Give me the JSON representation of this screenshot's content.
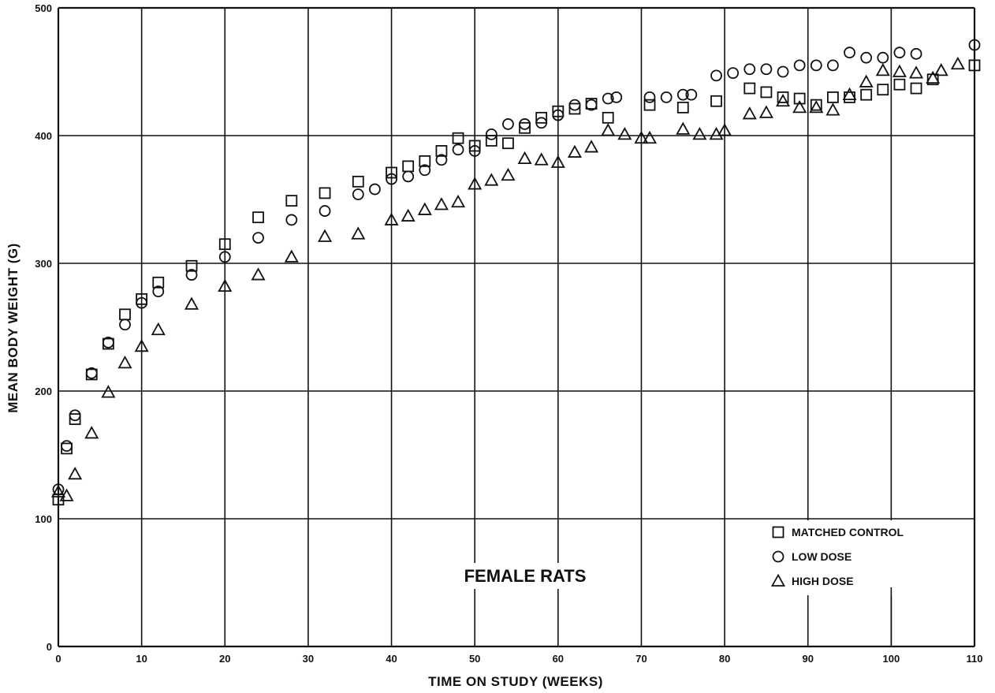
{
  "chart_data": {
    "type": "scatter",
    "xlabel": "TIME ON STUDY (WEEKS)",
    "ylabel": "MEAN BODY WEIGHT (G)",
    "xlim": [
      0,
      110
    ],
    "ylim": [
      0,
      500
    ],
    "x_ticks": [
      0,
      10,
      20,
      30,
      40,
      50,
      60,
      70,
      80,
      90,
      100,
      110
    ],
    "y_ticks": [
      0,
      100,
      200,
      300,
      400,
      500
    ],
    "grid": true,
    "legend_position": "bottom-right",
    "annotation": "FEMALE RATS",
    "series": [
      {
        "name": "MATCHED CONTROL",
        "marker": "square",
        "x": [
          0,
          1,
          2,
          4,
          6,
          8,
          10,
          12,
          16,
          20,
          24,
          28,
          32,
          36,
          40,
          42,
          44,
          46,
          48,
          50,
          52,
          54,
          56,
          58,
          60,
          62,
          64,
          66,
          71,
          75,
          79,
          83,
          85,
          87,
          89,
          91,
          93,
          95,
          97,
          99,
          101,
          103,
          105,
          110
        ],
        "y": [
          115,
          155,
          178,
          213,
          237,
          260,
          272,
          285,
          298,
          315,
          336,
          349,
          355,
          364,
          371,
          376,
          380,
          388,
          398,
          392,
          396,
          394,
          406,
          414,
          419,
          421,
          425,
          414,
          424,
          422,
          427,
          437,
          434,
          430,
          429,
          424,
          430,
          430,
          432,
          436,
          440,
          437,
          444,
          455
        ]
      },
      {
        "name": "LOW DOSE",
        "marker": "circle",
        "x": [
          0,
          1,
          2,
          4,
          6,
          8,
          10,
          12,
          16,
          20,
          24,
          28,
          32,
          36,
          38,
          40,
          42,
          44,
          46,
          48,
          50,
          52,
          54,
          56,
          58,
          60,
          62,
          64,
          66,
          67,
          71,
          73,
          75,
          76,
          79,
          81,
          83,
          85,
          87,
          89,
          91,
          93,
          95,
          97,
          99,
          101,
          103,
          110
        ],
        "y": [
          123,
          157,
          181,
          214,
          238,
          252,
          269,
          278,
          291,
          305,
          320,
          334,
          341,
          354,
          358,
          366,
          368,
          373,
          381,
          389,
          388,
          401,
          409,
          409,
          410,
          416,
          424,
          424,
          429,
          430,
          430,
          430,
          432,
          432,
          447,
          449,
          452,
          452,
          450,
          455,
          455,
          455,
          465,
          461,
          461,
          465,
          464,
          471
        ]
      },
      {
        "name": "HIGH DOSE",
        "marker": "triangle",
        "x": [
          0,
          1,
          2,
          4,
          6,
          8,
          10,
          12,
          16,
          20,
          24,
          28,
          32,
          36,
          40,
          42,
          44,
          46,
          48,
          50,
          52,
          54,
          56,
          58,
          60,
          62,
          64,
          66,
          68,
          70,
          71,
          75,
          77,
          79,
          80,
          83,
          85,
          87,
          89,
          91,
          93,
          95,
          97,
          99,
          101,
          103,
          105,
          106,
          108
        ],
        "y": [
          121,
          118,
          135,
          167,
          199,
          222,
          235,
          248,
          268,
          282,
          291,
          305,
          321,
          323,
          334,
          337,
          342,
          346,
          348,
          362,
          365,
          369,
          382,
          381,
          379,
          387,
          391,
          404,
          401,
          398,
          398,
          405,
          401,
          401,
          404,
          417,
          418,
          427,
          422,
          422,
          420,
          432,
          442,
          451,
          450,
          449,
          445,
          451,
          456
        ]
      }
    ]
  }
}
